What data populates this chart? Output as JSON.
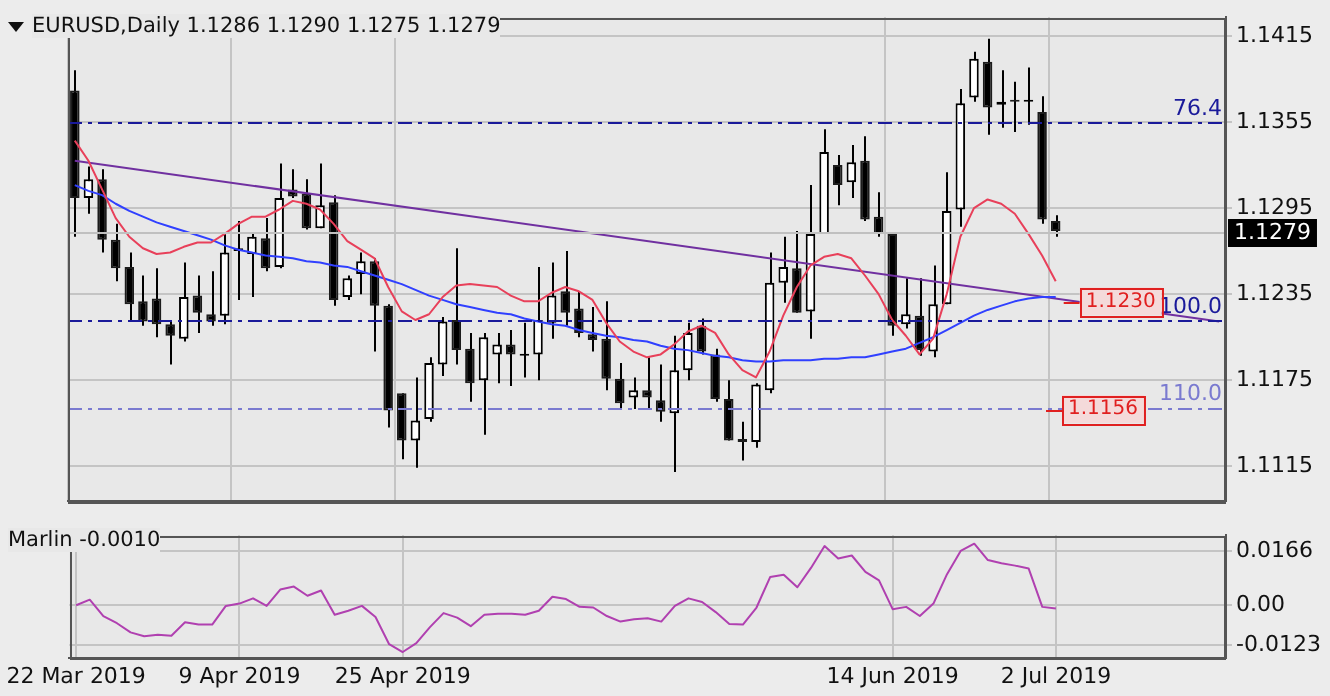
{
  "chart_data": [
    {
      "type": "candlestick",
      "title": "EURUSD,Daily 1.1286 1.1290 1.1275 1.1279",
      "categories": [
        "22 Mar 2019",
        null,
        null,
        null,
        null,
        null,
        null,
        null,
        null,
        null,
        null,
        null,
        "9 Apr 2019",
        null,
        null,
        null,
        null,
        null,
        null,
        null,
        null,
        null,
        null,
        null,
        "25 Apr 2019",
        null,
        null,
        null,
        null,
        null,
        null,
        null,
        null,
        null,
        null,
        null,
        null,
        null,
        null,
        null,
        null,
        null,
        null,
        null,
        null,
        null,
        null,
        null,
        null,
        null,
        null,
        null,
        null,
        null,
        null,
        null,
        null,
        null,
        null,
        null,
        "14 Jun 2019",
        null,
        null,
        null,
        null,
        null,
        null,
        null,
        null,
        null,
        null,
        null,
        "2 Jul 2019",
        null,
        null,
        null,
        null,
        null,
        null,
        null,
        null,
        null,
        null,
        null,
        null
      ],
      "ohlc": [
        [
          1.1377,
          1.1391,
          1.1275,
          1.1302
        ],
        [
          1.1302,
          1.1324,
          1.1291,
          1.1315
        ],
        [
          1.1315,
          1.1322,
          1.1264,
          1.1273
        ],
        [
          1.1273,
          1.1284,
          1.1244,
          1.1253
        ],
        [
          1.1254,
          1.1264,
          1.1217,
          1.1228
        ],
        [
          1.123,
          1.1248,
          1.1213,
          1.1216
        ],
        [
          1.1232,
          1.1253,
          1.1205,
          1.1214
        ],
        [
          1.1214,
          1.1217,
          1.1186,
          1.1206
        ],
        [
          1.1204,
          1.1257,
          1.1202,
          1.1233
        ],
        [
          1.1234,
          1.1248,
          1.1208,
          1.1222
        ],
        [
          1.1221,
          1.1251,
          1.1213,
          1.1216
        ],
        [
          1.122,
          1.1277,
          1.1214,
          1.1264
        ],
        [
          1.1265,
          1.1286,
          1.1231,
          1.1267
        ],
        [
          1.1263,
          1.1277,
          1.1233,
          1.1275
        ],
        [
          1.1274,
          1.1288,
          1.1251,
          1.1253
        ],
        [
          1.1254,
          1.1326,
          1.1253,
          1.1302
        ],
        [
          1.1308,
          1.1322,
          1.1302,
          1.1303
        ],
        [
          1.1305,
          1.1315,
          1.128,
          1.1281
        ],
        [
          1.1281,
          1.1326,
          1.1281,
          1.1297
        ],
        [
          1.1299,
          1.1304,
          1.1227,
          1.1231
        ],
        [
          1.1233,
          1.1248,
          1.1231,
          1.1246
        ],
        [
          1.1249,
          1.1264,
          1.1235,
          1.1258
        ],
        [
          1.1258,
          1.126,
          1.1195,
          1.1227
        ],
        [
          1.1227,
          1.1228,
          1.1142,
          1.1154
        ],
        [
          1.1166,
          1.1166,
          1.112,
          1.1133
        ],
        [
          1.1133,
          1.1177,
          1.1114,
          1.1147
        ],
        [
          1.1148,
          1.1191,
          1.1146,
          1.1187
        ],
        [
          1.1186,
          1.1219,
          1.1178,
          1.1216
        ],
        [
          1.1217,
          1.1267,
          1.1186,
          1.1196
        ],
        [
          1.1197,
          1.1208,
          1.116,
          1.1173
        ],
        [
          1.1175,
          1.1208,
          1.1137,
          1.1205
        ],
        [
          1.1193,
          1.1208,
          1.1173,
          1.12
        ],
        [
          1.12,
          1.121,
          1.1171,
          1.1193
        ],
        [
          1.1192,
          1.1215,
          1.1177,
          1.1193
        ],
        [
          1.1193,
          1.1254,
          1.1175,
          1.1217
        ],
        [
          1.1215,
          1.1257,
          1.1204,
          1.1234
        ],
        [
          1.1237,
          1.1265,
          1.1213,
          1.1222
        ],
        [
          1.1225,
          1.1237,
          1.1205,
          1.1208
        ],
        [
          1.1207,
          1.1226,
          1.1195,
          1.1203
        ],
        [
          1.1204,
          1.123,
          1.1168,
          1.1176
        ],
        [
          1.1176,
          1.1187,
          1.1155,
          1.1159
        ],
        [
          1.1163,
          1.1177,
          1.1155,
          1.1168
        ],
        [
          1.1168,
          1.1191,
          1.1155,
          1.1163
        ],
        [
          1.1161,
          1.1186,
          1.1146,
          1.1153
        ],
        [
          1.1152,
          1.1206,
          1.1111,
          1.1182
        ],
        [
          1.1182,
          1.1215,
          1.1175,
          1.1208
        ],
        [
          1.1213,
          1.1218,
          1.1193,
          1.1195
        ],
        [
          1.1193,
          1.1197,
          1.116,
          1.1162
        ],
        [
          1.1162,
          1.1175,
          1.1133,
          1.1133
        ],
        [
          1.1134,
          1.1146,
          1.1119,
          1.1132
        ],
        [
          1.1132,
          1.1173,
          1.1128,
          1.1172
        ],
        [
          1.1168,
          1.1264,
          1.1166,
          1.1243
        ],
        [
          1.1243,
          1.1275,
          1.1229,
          1.1254
        ],
        [
          1.1253,
          1.1279,
          1.1222,
          1.1222
        ],
        [
          1.1223,
          1.1311,
          1.1204,
          1.1277
        ],
        [
          1.1277,
          1.135,
          1.1277,
          1.1334
        ],
        [
          1.1325,
          1.1332,
          1.1297,
          1.1311
        ],
        [
          1.1313,
          1.1339,
          1.1302,
          1.1327
        ],
        [
          1.1328,
          1.1345,
          1.1286,
          1.1287
        ],
        [
          1.1289,
          1.1306,
          1.1275,
          1.1277
        ],
        [
          1.1277,
          1.1277,
          1.1206,
          1.1213
        ],
        [
          1.1214,
          1.1246,
          1.1211,
          1.1221
        ],
        [
          1.122,
          1.1246,
          1.1192,
          1.1196
        ],
        [
          1.1195,
          1.1255,
          1.1191,
          1.1228
        ],
        [
          1.1228,
          1.132,
          1.1228,
          1.1293
        ],
        [
          1.1294,
          1.1378,
          1.1282,
          1.1368
        ],
        [
          1.1372,
          1.1404,
          1.1369,
          1.1399
        ],
        [
          1.1397,
          1.1413,
          1.1346,
          1.1365
        ],
        [
          1.1367,
          1.1391,
          1.1351,
          1.1369
        ],
        [
          1.137,
          1.1383,
          1.1348,
          1.1369
        ],
        [
          1.1369,
          1.1393,
          1.1353,
          1.137
        ],
        [
          1.1362,
          1.1373,
          1.1284,
          1.1287
        ],
        [
          1.1286,
          1.129,
          1.1275,
          1.1279
        ],
        null,
        null,
        null,
        null,
        null,
        null,
        null,
        null,
        null,
        null,
        null,
        null
      ],
      "series": [
        {
          "type": "line",
          "color": "#e8405a",
          "values": [
            1.1342,
            1.1328,
            1.1308,
            1.1288,
            1.1275,
            1.1267,
            1.1263,
            1.1264,
            1.1268,
            1.1271,
            1.1271,
            1.1277,
            1.1284,
            1.1289,
            1.1289,
            1.1294,
            1.13,
            1.1298,
            1.1294,
            1.1284,
            1.1272,
            1.1266,
            1.126,
            1.124,
            1.1223,
            1.1217,
            1.1221,
            1.1233,
            1.1241,
            1.1242,
            1.1241,
            1.124,
            1.1234,
            1.123,
            1.123,
            1.1236,
            1.124,
            1.1237,
            1.1231,
            1.1215,
            1.1202,
            1.1195,
            1.1191,
            1.1193,
            1.12,
            1.1209,
            1.1213,
            1.1208,
            1.1193,
            1.1182,
            1.1177,
            1.1195,
            1.122,
            1.124,
            1.1255,
            1.1261,
            1.1263,
            1.126,
            1.1248,
            1.1235,
            1.1217,
            1.1206,
            1.1193,
            1.1204,
            1.1235,
            1.1275,
            1.1295,
            1.1301,
            1.1298,
            1.1291,
            1.1277,
            1.1262,
            1.1244,
            null,
            null,
            null,
            null,
            null,
            null,
            null,
            null,
            null,
            null,
            null,
            null
          ]
        },
        {
          "type": "line",
          "color": "#3040ff",
          "values": [
            1.1311,
            1.1307,
            1.1304,
            1.1298,
            1.1293,
            1.1289,
            1.1285,
            1.1282,
            1.1279,
            1.1276,
            1.1273,
            1.1269,
            1.1266,
            1.1264,
            1.1262,
            1.1261,
            1.126,
            1.1258,
            1.1257,
            1.1255,
            1.1254,
            1.1251,
            1.1248,
            1.1245,
            1.1242,
            1.1238,
            1.1234,
            1.1231,
            1.1228,
            1.1226,
            1.1224,
            1.1222,
            1.1221,
            1.1218,
            1.1216,
            1.1214,
            1.1213,
            1.121,
            1.1208,
            1.1206,
            1.1205,
            1.1203,
            1.1202,
            1.1199,
            1.1197,
            1.1196,
            1.1194,
            1.1192,
            1.1191,
            1.1189,
            1.1188,
            1.1188,
            1.1189,
            1.1189,
            1.1189,
            1.119,
            1.119,
            1.1191,
            1.1191,
            1.1193,
            1.1195,
            1.1197,
            1.1201,
            1.1205,
            1.121,
            1.1215,
            1.122,
            1.1224,
            1.1227,
            1.123,
            1.1232,
            1.1233,
            1.1233,
            null,
            null,
            null,
            null,
            null,
            null,
            null,
            null,
            null,
            null,
            null,
            null
          ]
        },
        {
          "type": "line",
          "color": "#7030a0",
          "values": [
            1.1328,
            null,
            null,
            null,
            null,
            null,
            null,
            null,
            null,
            null,
            null,
            null,
            null,
            null,
            null,
            null,
            null,
            null,
            null,
            null,
            null,
            null,
            null,
            null,
            null,
            null,
            null,
            null,
            null,
            null,
            null,
            null,
            null,
            null,
            null,
            null,
            null,
            null,
            null,
            null,
            null,
            null,
            null,
            null,
            null,
            null,
            null,
            null,
            null,
            null,
            null,
            null,
            null,
            null,
            null,
            null,
            null,
            null,
            null,
            null,
            null,
            null,
            null,
            null,
            null,
            null,
            null,
            null,
            null,
            null,
            null,
            null,
            null,
            null,
            null,
            null,
            null,
            null,
            null,
            null,
            null,
            null,
            null,
            null,
            1.1216
          ]
        }
      ],
      "ylim": [
        1.1091,
        1.1428
      ],
      "yticks": [
        1.1415,
        1.1355,
        1.1295,
        1.1235,
        1.1175,
        1.1115
      ],
      "grid": true,
      "tick_labels": "y",
      "ref_lines": [
        {
          "axis": "y",
          "value": 1.1355,
          "color": "#1a1a9a",
          "line_style": "dashed"
        },
        {
          "axis": "y",
          "value": 1.1217,
          "color": "#1a1a9a",
          "line_style": "dashed"
        },
        {
          "axis": "y",
          "value": 1.1156,
          "label": "1.1156",
          "color": "#7a7ad0",
          "line_style": "dashed"
        },
        {
          "axis": "y",
          "value": 1.1279,
          "label": "1.1279",
          "color": "#c0c0c0",
          "line_style": "solid"
        }
      ],
      "annotations": [
        {
          "text": "76.4",
          "y": 1.1355
        },
        {
          "text": "100.0",
          "y": 1.1217
        },
        {
          "text": "110.0",
          "y": 1.1156
        },
        {
          "text": "1.1230",
          "x": "2 Jul 2019",
          "y": 1.123
        }
      ]
    },
    {
      "type": "line",
      "title": "Marlin -0.0010",
      "color": "#b040b0",
      "categories": [
        "22 Mar 2019",
        null,
        null,
        null,
        null,
        null,
        null,
        null,
        null,
        null,
        null,
        null,
        "9 Apr 2019",
        null,
        null,
        null,
        null,
        null,
        null,
        null,
        null,
        null,
        null,
        null,
        "25 Apr 2019",
        null,
        null,
        null,
        null,
        null,
        null,
        null,
        null,
        null,
        null,
        null,
        null,
        null,
        null,
        null,
        null,
        null,
        null,
        null,
        null,
        null,
        null,
        null,
        null,
        null,
        null,
        null,
        null,
        null,
        null,
        null,
        null,
        null,
        null,
        null,
        "14 Jun 2019",
        null,
        null,
        null,
        null,
        null,
        null,
        null,
        null,
        null,
        null,
        null,
        "2 Jul 2019",
        null,
        null,
        null,
        null,
        null,
        null,
        null,
        null,
        null,
        null,
        null,
        null
      ],
      "values": [
        0.0,
        0.0017,
        -0.0033,
        -0.0055,
        -0.0083,
        -0.0095,
        -0.009,
        -0.0093,
        -0.0052,
        -0.0059,
        -0.0059,
        -0.0002,
        0.0005,
        0.0021,
        -0.0002,
        0.0048,
        0.0057,
        0.0029,
        0.0045,
        -0.0029,
        -0.0017,
        -0.0002,
        -0.0036,
        -0.0119,
        -0.0143,
        -0.0116,
        -0.0067,
        -0.0024,
        -0.0038,
        -0.0064,
        -0.0029,
        -0.0026,
        -0.0026,
        -0.0029,
        -0.0017,
        0.0026,
        0.0019,
        -0.0005,
        -0.0007,
        -0.0033,
        -0.005,
        -0.0043,
        -0.004,
        -0.005,
        -0.0002,
        0.0021,
        0.001,
        -0.0021,
        -0.0057,
        -0.0059,
        -0.0007,
        0.0086,
        0.0093,
        0.0055,
        0.0114,
        0.0181,
        0.0143,
        0.0152,
        0.0102,
        0.0076,
        -0.0012,
        -0.0005,
        -0.0033,
        0.0005,
        0.0095,
        0.0166,
        0.0188,
        0.0138,
        0.0128,
        0.0121,
        0.0112,
        -0.0005,
        -0.001,
        null,
        null,
        null,
        null,
        null,
        null,
        null,
        null,
        null,
        null,
        null,
        null
      ],
      "ylim": [
        -0.016,
        0.0214
      ],
      "yticks": [
        0.0166,
        {
          "value": 0,
          "label": "0.00"
        },
        -0.0123
      ],
      "grid": true
    }
  ]
}
